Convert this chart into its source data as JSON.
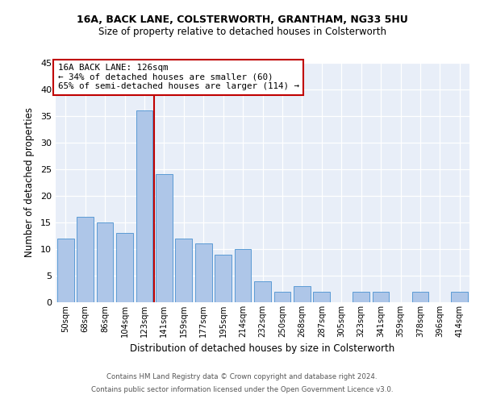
{
  "title1": "16A, BACK LANE, COLSTERWORTH, GRANTHAM, NG33 5HU",
  "title2": "Size of property relative to detached houses in Colsterworth",
  "xlabel": "Distribution of detached houses by size in Colsterworth",
  "ylabel": "Number of detached properties",
  "categories": [
    "50sqm",
    "68sqm",
    "86sqm",
    "104sqm",
    "123sqm",
    "141sqm",
    "159sqm",
    "177sqm",
    "195sqm",
    "214sqm",
    "232sqm",
    "250sqm",
    "268sqm",
    "287sqm",
    "305sqm",
    "323sqm",
    "341sqm",
    "359sqm",
    "378sqm",
    "396sqm",
    "414sqm"
  ],
  "values": [
    12,
    16,
    15,
    13,
    36,
    24,
    12,
    11,
    9,
    10,
    4,
    2,
    3,
    2,
    0,
    2,
    2,
    0,
    2,
    0,
    2
  ],
  "bar_color": "#aec6e8",
  "bar_edgecolor": "#5b9bd5",
  "vline_index": 4,
  "highlight_color": "#c00000",
  "annotation_title": "16A BACK LANE: 126sqm",
  "annotation_line1": "← 34% of detached houses are smaller (60)",
  "annotation_line2": "65% of semi-detached houses are larger (114) →",
  "annotation_box_color": "#c00000",
  "ylim": [
    0,
    45
  ],
  "yticks": [
    0,
    5,
    10,
    15,
    20,
    25,
    30,
    35,
    40,
    45
  ],
  "footer1": "Contains HM Land Registry data © Crown copyright and database right 2024.",
  "footer2": "Contains public sector information licensed under the Open Government Licence v3.0.",
  "bg_color": "#e8eef8"
}
